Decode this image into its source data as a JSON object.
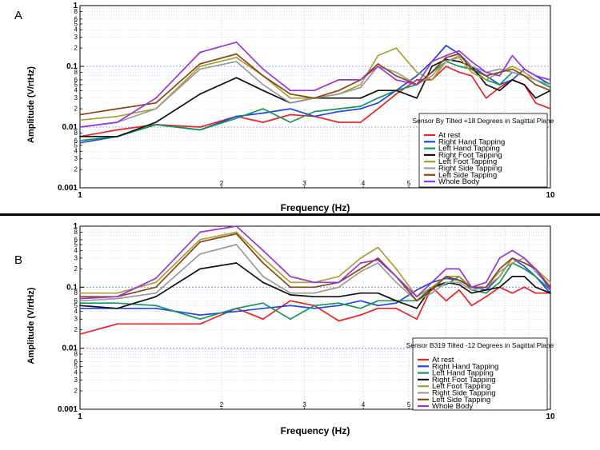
{
  "chart_data": [
    {
      "panel": "A",
      "type": "line",
      "xscale": "log",
      "yscale": "log",
      "xlim": [
        1,
        10
      ],
      "ylim": [
        0.001,
        1
      ],
      "xlabel": "Frequency (Hz)",
      "ylabel": "Amplitude (V/rtHz)",
      "x_major_ticks": [
        "1",
        "10"
      ],
      "x_minor_ticks": [
        "2",
        "3",
        "4",
        "5",
        "6",
        "7",
        "8",
        "9"
      ],
      "y_major_ticks": [
        "1",
        "0.1",
        "0.01",
        "0.001"
      ],
      "y_minor_ticks": [
        "2",
        "3",
        "4",
        "5",
        "6",
        "8"
      ],
      "grid": true,
      "legend": {
        "title": "Sensor By Tilted +18 Degrees in Sagittal Plane",
        "placement": "lower-right"
      },
      "x": [
        1,
        1.2,
        1.45,
        1.8,
        2.15,
        2.45,
        2.8,
        3.15,
        3.55,
        3.95,
        4.3,
        4.7,
        5.2,
        5.6,
        6.0,
        6.4,
        6.8,
        7.3,
        7.8,
        8.3,
        8.8,
        9.3,
        10
      ],
      "series": [
        {
          "name": "At rest",
          "color": "#ee2222",
          "values": [
            0.007,
            0.009,
            0.011,
            0.01,
            0.015,
            0.012,
            0.016,
            0.015,
            0.012,
            0.012,
            0.02,
            0.035,
            0.06,
            0.06,
            0.1,
            0.08,
            0.07,
            0.03,
            0.045,
            0.06,
            0.05,
            0.025,
            0.02
          ]
        },
        {
          "name": "Right Hand Tapping",
          "color": "#2244ee",
          "values": [
            0.0055,
            0.007,
            0.011,
            0.009,
            0.015,
            0.017,
            0.02,
            0.015,
            0.018,
            0.02,
            0.025,
            0.04,
            0.07,
            0.12,
            0.22,
            0.16,
            0.1,
            0.07,
            0.05,
            0.06,
            0.09,
            0.07,
            0.05
          ]
        },
        {
          "name": "Left Hand Tapping",
          "color": "#119955",
          "values": [
            0.006,
            0.007,
            0.011,
            0.009,
            0.014,
            0.02,
            0.012,
            0.018,
            0.02,
            0.022,
            0.03,
            0.04,
            0.05,
            0.08,
            0.12,
            0.1,
            0.09,
            0.06,
            0.05,
            0.08,
            0.07,
            0.06,
            0.045
          ]
        },
        {
          "name": "Right Foot Tapping",
          "color": "#111111",
          "values": [
            0.007,
            0.007,
            0.012,
            0.035,
            0.065,
            0.04,
            0.025,
            0.03,
            0.03,
            0.03,
            0.04,
            0.04,
            0.03,
            0.1,
            0.13,
            0.12,
            0.1,
            0.05,
            0.04,
            0.06,
            0.05,
            0.03,
            0.04
          ]
        },
        {
          "name": "Left Foot Tapping",
          "color": "#a8a030",
          "values": [
            0.013,
            0.015,
            0.02,
            0.1,
            0.14,
            0.07,
            0.03,
            0.03,
            0.035,
            0.05,
            0.15,
            0.2,
            0.08,
            0.06,
            0.12,
            0.14,
            0.08,
            0.06,
            0.08,
            0.1,
            0.08,
            0.06,
            0.05
          ]
        },
        {
          "name": "Right Side Tapping",
          "color": "#999999",
          "values": [
            0.01,
            0.012,
            0.02,
            0.09,
            0.12,
            0.05,
            0.025,
            0.03,
            0.035,
            0.045,
            0.1,
            0.08,
            0.05,
            0.07,
            0.12,
            0.15,
            0.1,
            0.08,
            0.09,
            0.08,
            0.07,
            0.06,
            0.05
          ]
        },
        {
          "name": "Left Side Tapping",
          "color": "#8b4513",
          "values": [
            0.016,
            0.02,
            0.025,
            0.11,
            0.16,
            0.07,
            0.035,
            0.03,
            0.04,
            0.06,
            0.11,
            0.07,
            0.05,
            0.08,
            0.14,
            0.16,
            0.09,
            0.07,
            0.08,
            0.09,
            0.07,
            0.05,
            0.04
          ]
        },
        {
          "name": "Whole Body",
          "color": "#9933dd",
          "values": [
            0.01,
            0.012,
            0.03,
            0.17,
            0.25,
            0.09,
            0.04,
            0.04,
            0.06,
            0.06,
            0.1,
            0.06,
            0.05,
            0.12,
            0.15,
            0.18,
            0.12,
            0.08,
            0.07,
            0.15,
            0.09,
            0.07,
            0.06
          ]
        }
      ]
    },
    {
      "panel": "B",
      "type": "line",
      "xscale": "log",
      "yscale": "log",
      "xlim": [
        1,
        10
      ],
      "ylim": [
        0.001,
        1
      ],
      "xlabel": "Frequency (Hz)",
      "ylabel": "Amplitude (V/rtHz)",
      "x_major_ticks": [
        "1",
        "10"
      ],
      "x_minor_ticks": [
        "2",
        "3",
        "4",
        "5",
        "6",
        "7",
        "8",
        "9"
      ],
      "y_major_ticks": [
        "1",
        "0.1",
        "0.01",
        "0.001"
      ],
      "y_minor_ticks": [
        "2",
        "3",
        "4",
        "5",
        "6",
        "8"
      ],
      "grid": true,
      "legend": {
        "title": "Sensor B319 Tilted -12 Degrees in Sagittal Plane",
        "placement": "lower-right"
      },
      "x": [
        1,
        1.2,
        1.45,
        1.8,
        2.15,
        2.45,
        2.8,
        3.15,
        3.55,
        3.95,
        4.3,
        4.7,
        5.2,
        5.6,
        6.0,
        6.4,
        6.8,
        7.3,
        7.8,
        8.3,
        8.8,
        9.3,
        10
      ],
      "series": [
        {
          "name": "At rest",
          "color": "#ee2222",
          "values": [
            0.017,
            0.025,
            0.025,
            0.025,
            0.045,
            0.03,
            0.06,
            0.05,
            0.028,
            0.035,
            0.045,
            0.045,
            0.03,
            0.1,
            0.06,
            0.09,
            0.05,
            0.07,
            0.1,
            0.08,
            0.1,
            0.08,
            0.08
          ]
        },
        {
          "name": "Right Hand Tapping",
          "color": "#2244ee",
          "values": [
            0.045,
            0.045,
            0.045,
            0.035,
            0.04,
            0.045,
            0.05,
            0.045,
            0.05,
            0.06,
            0.05,
            0.055,
            0.09,
            0.12,
            0.14,
            0.13,
            0.1,
            0.09,
            0.15,
            0.3,
            0.22,
            0.15,
            0.08
          ]
        },
        {
          "name": "Left Hand Tapping",
          "color": "#119955",
          "values": [
            0.055,
            0.055,
            0.05,
            0.03,
            0.045,
            0.055,
            0.03,
            0.05,
            0.055,
            0.045,
            0.06,
            0.06,
            0.06,
            0.1,
            0.11,
            0.15,
            0.09,
            0.08,
            0.12,
            0.25,
            0.2,
            0.15,
            0.09
          ]
        },
        {
          "name": "Right Foot Tapping",
          "color": "#111111",
          "values": [
            0.05,
            0.045,
            0.07,
            0.2,
            0.25,
            0.12,
            0.075,
            0.07,
            0.07,
            0.08,
            0.08,
            0.06,
            0.045,
            0.1,
            0.12,
            0.11,
            0.08,
            0.09,
            0.1,
            0.15,
            0.15,
            0.1,
            0.08
          ]
        },
        {
          "name": "Left Foot Tapping",
          "color": "#a8a030",
          "values": [
            0.08,
            0.08,
            0.12,
            0.6,
            0.8,
            0.3,
            0.12,
            0.12,
            0.15,
            0.3,
            0.45,
            0.2,
            0.07,
            0.1,
            0.15,
            0.15,
            0.1,
            0.1,
            0.15,
            0.3,
            0.25,
            0.2,
            0.12
          ]
        },
        {
          "name": "Right Side Tapping",
          "color": "#999999",
          "values": [
            0.06,
            0.065,
            0.08,
            0.35,
            0.5,
            0.15,
            0.08,
            0.08,
            0.1,
            0.18,
            0.25,
            0.12,
            0.06,
            0.08,
            0.12,
            0.12,
            0.09,
            0.1,
            0.18,
            0.25,
            0.3,
            0.18,
            0.1
          ]
        },
        {
          "name": "Left Side Tapping",
          "color": "#8b4513",
          "values": [
            0.07,
            0.07,
            0.1,
            0.55,
            0.75,
            0.25,
            0.1,
            0.1,
            0.12,
            0.2,
            0.3,
            0.15,
            0.06,
            0.09,
            0.15,
            0.13,
            0.1,
            0.1,
            0.2,
            0.3,
            0.25,
            0.2,
            0.1
          ]
        },
        {
          "name": "Whole Body",
          "color": "#9933dd",
          "values": [
            0.065,
            0.07,
            0.14,
            0.8,
            1.0,
            0.4,
            0.15,
            0.12,
            0.12,
            0.25,
            0.28,
            0.15,
            0.07,
            0.12,
            0.2,
            0.2,
            0.1,
            0.12,
            0.3,
            0.4,
            0.3,
            0.2,
            0.09
          ]
        }
      ]
    }
  ]
}
